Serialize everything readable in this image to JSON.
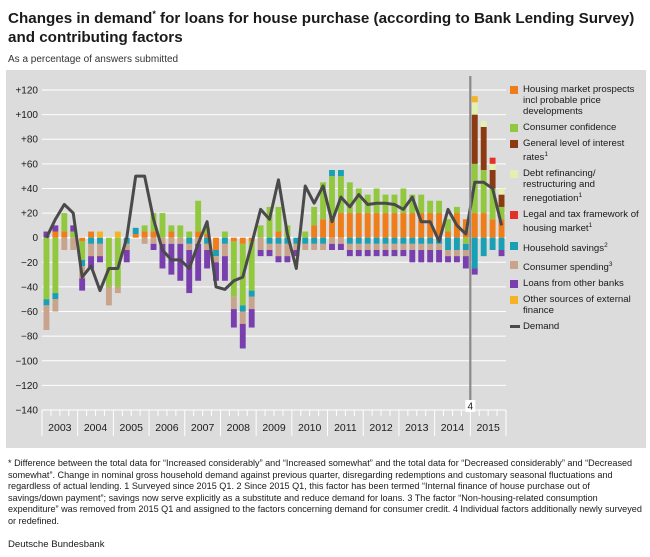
{
  "title_main": "Changes in demand",
  "title_sup": "*",
  "title_rest": " for loans for house purchase (according to Bank Lending Survey) and contributing factors",
  "subtitle": "As a percentage of answers submitted",
  "source": "Deutsche Bundesbank",
  "footnote": "* Difference between the total data for “Increased considerably” and “Increased somewhat” and the total data for “Decreased considerably” and “Decreased somewhat”. Change in nominal gross household demand against previous quarter, disregarding redemptions and customary seasonal fluctuations and regardless of actual lending. 1 Surveyed since 2015 Q1. 2 Since 2015 Q1, this factor has been termed “Internal finance of house purchase out of savings/down payment”; savings now serve explicitly as a substitute and reduce demand for loans. 3 The factor “Non-housing-related consumption expenditure” was removed from 2015 Q1 and assigned to the factors concerning demand for consumer credit. 4 Individual factors additionally newly surveyed or redefined.",
  "colors": {
    "housing": "#ef7d1a",
    "confidence": "#92c83e",
    "interest": "#8b3a12",
    "refinancing": "#e3f0b4",
    "legal": "#e5302a",
    "savings": "#1aa0b4",
    "spending": "#c8a48c",
    "otherbanks": "#7a3fae",
    "external": "#f5b223",
    "demand": "#4a4a4a",
    "plotbg": "#dcdcdc",
    "grid": "#ffffff"
  },
  "chart_data": {
    "type": "bar",
    "stacked": true,
    "ylim": [
      -140,
      120
    ],
    "yticks": [
      120,
      100,
      80,
      60,
      40,
      20,
      0,
      -20,
      -40,
      -60,
      -80,
      -100,
      -120,
      -140
    ],
    "ytick_labels": [
      "+120",
      "+100",
      "+80",
      "+60",
      "+40",
      "+20",
      "0",
      "−20",
      "−40",
      "−60",
      "−80",
      "−100",
      "−120",
      "−140"
    ],
    "years": [
      "2003",
      "2004",
      "2005",
      "2006",
      "2007",
      "2008",
      "2009",
      "2010",
      "2011",
      "2012",
      "2013",
      "2014",
      "2015"
    ],
    "annotation": "4",
    "annotation_position": "between 2014 Q4 and 2015 Q1",
    "x": [
      "2003 Q1",
      "2003 Q2",
      "2003 Q3",
      "2003 Q4",
      "2004 Q1",
      "2004 Q2",
      "2004 Q3",
      "2004 Q4",
      "2005 Q1",
      "2005 Q2",
      "2005 Q3",
      "2005 Q4",
      "2006 Q1",
      "2006 Q2",
      "2006 Q3",
      "2006 Q4",
      "2007 Q1",
      "2007 Q2",
      "2007 Q3",
      "2007 Q4",
      "2008 Q1",
      "2008 Q2",
      "2008 Q3",
      "2008 Q4",
      "2009 Q1",
      "2009 Q2",
      "2009 Q3",
      "2009 Q4",
      "2010 Q1",
      "2010 Q2",
      "2010 Q3",
      "2010 Q4",
      "2011 Q1",
      "2011 Q2",
      "2011 Q3",
      "2011 Q4",
      "2012 Q1",
      "2012 Q2",
      "2012 Q3",
      "2012 Q4",
      "2013 Q1",
      "2013 Q2",
      "2013 Q3",
      "2013 Q4",
      "2014 Q1",
      "2014 Q2",
      "2014 Q3",
      "2014 Q4",
      "2015 Q1",
      "2015 Q2",
      "2015 Q3",
      "2015 Q4"
    ],
    "series": [
      {
        "name": "Housing market prospects incl probable price developments",
        "key": "housing",
        "values": [
          0,
          5,
          5,
          0,
          -3,
          5,
          0,
          0,
          0,
          0,
          3,
          5,
          5,
          0,
          5,
          0,
          0,
          5,
          3,
          -10,
          0,
          -3,
          -5,
          -3,
          0,
          0,
          5,
          0,
          0,
          0,
          10,
          15,
          15,
          20,
          20,
          20,
          20,
          20,
          20,
          20,
          20,
          20,
          20,
          20,
          20,
          5,
          20,
          15,
          20,
          20,
          15,
          15
        ]
      },
      {
        "name": "Consumer confidence",
        "key": "confidence",
        "values": [
          -50,
          -45,
          15,
          5,
          -15,
          0,
          0,
          -40,
          -40,
          0,
          0,
          5,
          15,
          20,
          5,
          10,
          5,
          25,
          5,
          0,
          5,
          -45,
          -50,
          -40,
          10,
          25,
          20,
          10,
          0,
          5,
          15,
          30,
          35,
          30,
          25,
          20,
          15,
          20,
          15,
          15,
          20,
          15,
          15,
          10,
          10,
          10,
          5,
          -5,
          40,
          35,
          25,
          10
        ]
      },
      {
        "name": "General level of interest rates",
        "key": "interest",
        "values": [
          0,
          0,
          0,
          0,
          0,
          0,
          0,
          0,
          0,
          0,
          0,
          0,
          0,
          0,
          0,
          0,
          0,
          0,
          0,
          0,
          0,
          0,
          0,
          0,
          0,
          0,
          0,
          0,
          0,
          0,
          0,
          0,
          0,
          0,
          0,
          0,
          0,
          0,
          0,
          0,
          0,
          0,
          0,
          0,
          0,
          0,
          0,
          0,
          40,
          35,
          15,
          10
        ]
      },
      {
        "name": "Debt refinancing/ restructuring and renegotiation",
        "key": "refinancing",
        "values": [
          0,
          0,
          0,
          0,
          0,
          0,
          0,
          0,
          0,
          0,
          0,
          0,
          0,
          0,
          0,
          0,
          0,
          0,
          0,
          0,
          0,
          0,
          0,
          0,
          0,
          0,
          0,
          0,
          0,
          0,
          0,
          0,
          0,
          0,
          0,
          0,
          0,
          0,
          0,
          0,
          0,
          0,
          0,
          0,
          0,
          0,
          0,
          0,
          10,
          5,
          5,
          5
        ]
      },
      {
        "name": "Legal and tax framework of housing market",
        "key": "legal",
        "values": [
          0,
          0,
          0,
          0,
          0,
          0,
          0,
          0,
          0,
          0,
          0,
          0,
          0,
          0,
          0,
          0,
          0,
          0,
          0,
          0,
          0,
          0,
          0,
          0,
          0,
          0,
          0,
          0,
          0,
          0,
          0,
          0,
          0,
          0,
          0,
          0,
          0,
          0,
          0,
          0,
          0,
          0,
          0,
          0,
          0,
          0,
          0,
          0,
          0,
          0,
          5,
          0
        ]
      },
      {
        "name": "Household savings",
        "key": "savings",
        "values": [
          -5,
          -5,
          0,
          0,
          -5,
          -5,
          -5,
          0,
          0,
          -5,
          5,
          0,
          0,
          0,
          0,
          0,
          -5,
          0,
          -5,
          -5,
          -5,
          0,
          -5,
          -5,
          0,
          -5,
          -5,
          -5,
          -5,
          -5,
          -5,
          -5,
          5,
          5,
          -5,
          -5,
          -5,
          -5,
          -5,
          -5,
          -5,
          -5,
          -5,
          -5,
          -5,
          -10,
          -10,
          -5,
          -25,
          -15,
          -10,
          -10
        ]
      },
      {
        "name": "Consumer spending",
        "key": "spending",
        "values": [
          -20,
          -10,
          -10,
          -10,
          -10,
          -10,
          -10,
          -15,
          -5,
          -5,
          0,
          -5,
          -5,
          -5,
          -5,
          -5,
          -5,
          -5,
          -5,
          -5,
          -10,
          -10,
          -10,
          -10,
          -10,
          -5,
          -10,
          -10,
          -5,
          -5,
          -5,
          -5,
          -5,
          -5,
          -5,
          -5,
          -5,
          -5,
          -5,
          -5,
          -5,
          -5,
          -5,
          -5,
          -5,
          -5,
          -5,
          -5,
          0,
          0,
          0,
          0
        ]
      },
      {
        "name": "Loans from other banks",
        "key": "otherbanks",
        "values": [
          5,
          5,
          0,
          5,
          -10,
          -10,
          -5,
          0,
          0,
          -10,
          0,
          0,
          -5,
          -20,
          -25,
          -30,
          -35,
          -30,
          -15,
          -15,
          -20,
          -15,
          -20,
          -15,
          -5,
          -5,
          -5,
          -5,
          -5,
          0,
          0,
          0,
          -5,
          -5,
          -5,
          -5,
          -5,
          -5,
          -5,
          -5,
          -5,
          -10,
          -10,
          -10,
          -10,
          -5,
          -5,
          -10,
          -5,
          0,
          0,
          -5
        ]
      },
      {
        "name": "Other sources of external finance",
        "key": "external",
        "values": [
          0,
          0,
          0,
          0,
          0,
          0,
          5,
          0,
          5,
          0,
          0,
          0,
          0,
          0,
          0,
          0,
          0,
          0,
          0,
          0,
          0,
          0,
          0,
          0,
          0,
          0,
          0,
          0,
          0,
          0,
          0,
          0,
          0,
          0,
          0,
          0,
          0,
          0,
          0,
          0,
          0,
          0,
          0,
          0,
          0,
          0,
          0,
          0,
          5,
          0,
          0,
          0
        ]
      }
    ],
    "line": {
      "name": "Demand",
      "key": "demand",
      "values": [
        0,
        15,
        27,
        20,
        -32,
        -23,
        -43,
        -25,
        -25,
        0,
        50,
        50,
        15,
        -10,
        -18,
        -18,
        -25,
        -5,
        13,
        -40,
        -42,
        -35,
        -32,
        -5,
        23,
        15,
        47,
        3,
        -25,
        42,
        28,
        42,
        13,
        33,
        25,
        35,
        27,
        28,
        28,
        27,
        23,
        33,
        13,
        13,
        -3,
        23,
        10,
        3,
        45,
        45,
        40,
        10
      ]
    }
  },
  "legend": [
    {
      "key": "housing",
      "type": "box",
      "label": "Housing market prospects incl probable price developments",
      "sup": ""
    },
    {
      "key": "confidence",
      "type": "box",
      "label": "Consumer confidence",
      "sup": ""
    },
    {
      "key": "interest",
      "type": "box",
      "label": "General level of interest rates",
      "sup": "1"
    },
    {
      "key": "refinancing",
      "type": "box",
      "label": "Debt refinancing/ restructuring and renegotiation",
      "sup": "1"
    },
    {
      "key": "legal",
      "type": "box",
      "label": "Legal and tax framework of housing market",
      "sup": "1"
    },
    {
      "key": "savings",
      "type": "box",
      "label": "Household savings",
      "sup": "2"
    },
    {
      "key": "spending",
      "type": "box",
      "label": "Consumer spending",
      "sup": "3"
    },
    {
      "key": "otherbanks",
      "type": "box",
      "label": "Loans from other banks",
      "sup": ""
    },
    {
      "key": "external",
      "type": "box",
      "label": "Other sources of external finance",
      "sup": ""
    },
    {
      "key": "demand",
      "type": "line",
      "label": "Demand",
      "sup": ""
    }
  ]
}
